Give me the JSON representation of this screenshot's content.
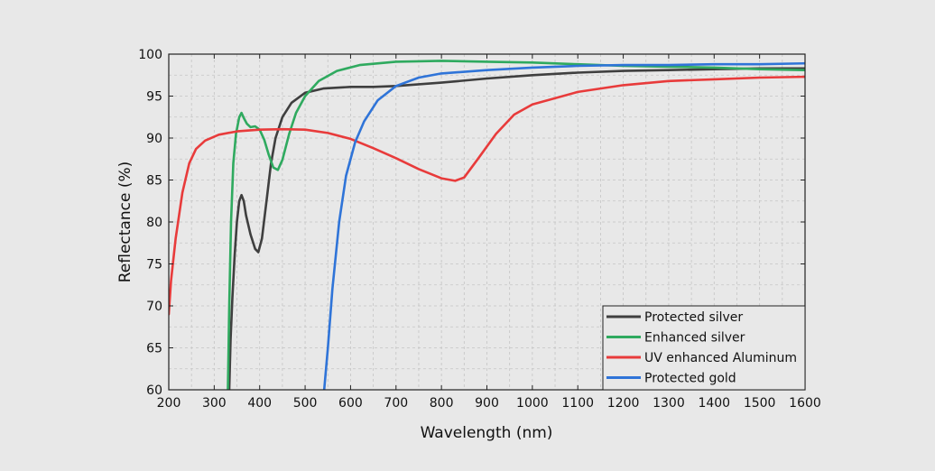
{
  "chart_data": {
    "type": "line",
    "title": "",
    "xlabel": "Wavelength (nm)",
    "ylabel": "Reflectance (%)",
    "xlim": [
      200,
      1600
    ],
    "ylim": [
      60,
      100
    ],
    "x_ticks": [
      200,
      300,
      400,
      500,
      600,
      700,
      800,
      900,
      1000,
      1100,
      1200,
      1300,
      1400,
      1500,
      1600
    ],
    "y_ticks": [
      60,
      65,
      70,
      75,
      80,
      85,
      90,
      95,
      100
    ],
    "grid": true,
    "legend_position": "bottom-right",
    "series": [
      {
        "name": "Protected silver",
        "color": "#3f3f3f",
        "points": [
          [
            333,
            60
          ],
          [
            336,
            66
          ],
          [
            340,
            71
          ],
          [
            345,
            76
          ],
          [
            350,
            80
          ],
          [
            355,
            82.5
          ],
          [
            360,
            83.2
          ],
          [
            365,
            82.5
          ],
          [
            370,
            80.8
          ],
          [
            380,
            78.5
          ],
          [
            390,
            76.8
          ],
          [
            397,
            76.4
          ],
          [
            405,
            78
          ],
          [
            415,
            82.5
          ],
          [
            425,
            87
          ],
          [
            435,
            90
          ],
          [
            450,
            92.5
          ],
          [
            470,
            94.2
          ],
          [
            500,
            95.4
          ],
          [
            540,
            95.9
          ],
          [
            600,
            96.1
          ],
          [
            650,
            96.1
          ],
          [
            700,
            96.2
          ],
          [
            800,
            96.6
          ],
          [
            900,
            97.1
          ],
          [
            1000,
            97.5
          ],
          [
            1100,
            97.8
          ],
          [
            1200,
            98
          ],
          [
            1300,
            98.1
          ],
          [
            1400,
            98.2
          ],
          [
            1500,
            98.3
          ],
          [
            1600,
            98.3
          ]
        ]
      },
      {
        "name": "Enhanced silver",
        "color": "#2faa5f",
        "points": [
          [
            330,
            60
          ],
          [
            333,
            70
          ],
          [
            337,
            80
          ],
          [
            342,
            87
          ],
          [
            348,
            90.5
          ],
          [
            355,
            92.5
          ],
          [
            360,
            93
          ],
          [
            365,
            92.4
          ],
          [
            372,
            91.7
          ],
          [
            380,
            91.3
          ],
          [
            390,
            91.4
          ],
          [
            400,
            91
          ],
          [
            410,
            89.8
          ],
          [
            420,
            88
          ],
          [
            430,
            86.5
          ],
          [
            440,
            86.2
          ],
          [
            450,
            87.4
          ],
          [
            465,
            90.5
          ],
          [
            480,
            93
          ],
          [
            500,
            95
          ],
          [
            530,
            96.8
          ],
          [
            570,
            98
          ],
          [
            620,
            98.7
          ],
          [
            700,
            99.1
          ],
          [
            800,
            99.2
          ],
          [
            900,
            99.1
          ],
          [
            1000,
            99
          ],
          [
            1100,
            98.8
          ],
          [
            1200,
            98.6
          ],
          [
            1300,
            98.5
          ],
          [
            1400,
            98.4
          ],
          [
            1500,
            98.2
          ],
          [
            1600,
            98.1
          ]
        ]
      },
      {
        "name": "UV enhanced Aluminum",
        "color": "#e83b3b",
        "points": [
          [
            200,
            69
          ],
          [
            205,
            73
          ],
          [
            215,
            78
          ],
          [
            230,
            83.5
          ],
          [
            245,
            87
          ],
          [
            260,
            88.7
          ],
          [
            280,
            89.7
          ],
          [
            310,
            90.4
          ],
          [
            350,
            90.8
          ],
          [
            400,
            91
          ],
          [
            450,
            91.05
          ],
          [
            500,
            91
          ],
          [
            550,
            90.6
          ],
          [
            600,
            89.9
          ],
          [
            650,
            88.8
          ],
          [
            700,
            87.6
          ],
          [
            750,
            86.3
          ],
          [
            800,
            85.2
          ],
          [
            830,
            84.9
          ],
          [
            850,
            85.3
          ],
          [
            880,
            87.5
          ],
          [
            920,
            90.5
          ],
          [
            960,
            92.8
          ],
          [
            1000,
            94
          ],
          [
            1100,
            95.5
          ],
          [
            1200,
            96.3
          ],
          [
            1300,
            96.8
          ],
          [
            1400,
            97
          ],
          [
            1500,
            97.2
          ],
          [
            1600,
            97.3
          ]
        ]
      },
      {
        "name": "Protected gold",
        "color": "#2f74d8",
        "points": [
          [
            542,
            60
          ],
          [
            550,
            65
          ],
          [
            560,
            72
          ],
          [
            575,
            80
          ],
          [
            590,
            85.5
          ],
          [
            610,
            89.5
          ],
          [
            630,
            92
          ],
          [
            660,
            94.5
          ],
          [
            700,
            96.2
          ],
          [
            750,
            97.2
          ],
          [
            800,
            97.7
          ],
          [
            900,
            98.1
          ],
          [
            1000,
            98.4
          ],
          [
            1100,
            98.6
          ],
          [
            1200,
            98.7
          ],
          [
            1300,
            98.7
          ],
          [
            1400,
            98.8
          ],
          [
            1500,
            98.8
          ],
          [
            1600,
            98.9
          ]
        ]
      }
    ]
  }
}
